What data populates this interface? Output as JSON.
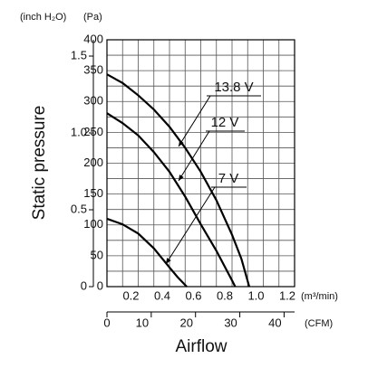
{
  "chart_data": {
    "type": "line",
    "xlabel": "Airflow",
    "ylabel": "Static pressure",
    "xunit": "(m³/min)",
    "x2unit": "(CFM)",
    "yunit": "(Pa)",
    "y2unit": "(inch H₂O)",
    "xlim": [
      0,
      1.2
    ],
    "xticks": [
      {
        "value": 0.2,
        "label": "0.2"
      },
      {
        "value": 0.4,
        "label": "0.4"
      },
      {
        "value": 0.6,
        "label": "0.6"
      },
      {
        "value": 0.8,
        "label": "0.8"
      },
      {
        "value": 1.0,
        "label": "1.0"
      },
      {
        "value": 1.2,
        "label": "1.2"
      }
    ],
    "minor_xticks": [
      0.1,
      0.3,
      0.5,
      0.7,
      0.9,
      1.1
    ],
    "x2lim": [
      0,
      42.37
    ],
    "x2ticks": [
      0,
      10,
      20,
      30,
      40
    ],
    "ylim": [
      0,
      400
    ],
    "yticks": [
      0,
      50,
      100,
      150,
      200,
      250,
      300,
      350,
      400
    ],
    "minor_yticks": [
      25,
      75,
      125,
      175,
      225,
      275,
      325,
      375
    ],
    "y2lim": [
      0,
      1.606
    ],
    "y2ticks": [
      0,
      0.5,
      {
        "value": 1.0,
        "label": "1.0"
      },
      1.5
    ],
    "grid": true,
    "series": [
      {
        "name": "13.8 V",
        "color": "#000000",
        "x": [
          0,
          0.1,
          0.2,
          0.3,
          0.4,
          0.5,
          0.6,
          0.7,
          0.8,
          0.86,
          0.91
        ],
        "values": [
          344,
          330,
          310,
          287,
          259,
          225,
          186,
          140,
          84,
          45,
          0
        ]
      },
      {
        "name": "12 V",
        "color": "#000000",
        "x": [
          0,
          0.1,
          0.2,
          0.3,
          0.4,
          0.5,
          0.6,
          0.7,
          0.8,
          0.82
        ],
        "values": [
          281,
          265,
          245,
          218,
          186,
          146,
          101,
          58,
          10,
          0
        ]
      },
      {
        "name": "7 V",
        "color": "#000000",
        "x": [
          0,
          0.1,
          0.2,
          0.3,
          0.4,
          0.45,
          0.51
        ],
        "values": [
          110,
          101,
          86,
          62,
          31,
          16,
          0
        ]
      }
    ]
  }
}
